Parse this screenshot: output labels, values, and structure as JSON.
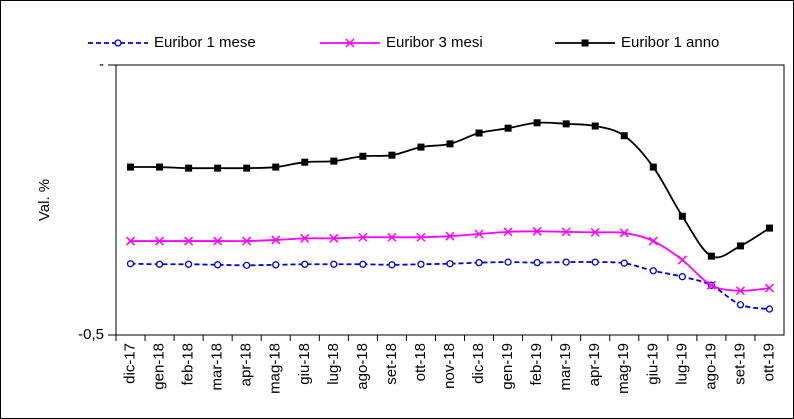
{
  "chart_data": {
    "type": "line",
    "y_label": "Val. %",
    "categories": [
      "dic-17",
      "gen-18",
      "feb-18",
      "mar-18",
      "apr-18",
      "mag-18",
      "giu-18",
      "lug-18",
      "ago-18",
      "set-18",
      "ott-18",
      "nov-18",
      "dic-18",
      "gen-19",
      "feb-19",
      "mar-19",
      "apr-19",
      "mag-19",
      "giu-19",
      "lug-19",
      "ago-19",
      "set-19",
      "ott-19"
    ],
    "series": [
      {
        "name": "Euribor 1 mese",
        "color": "#0000cc",
        "marker": "circle",
        "dash": true,
        "values": [
          -0.368,
          -0.369,
          -0.369,
          -0.37,
          -0.371,
          -0.37,
          -0.369,
          -0.369,
          -0.369,
          -0.37,
          -0.369,
          -0.368,
          -0.366,
          -0.365,
          -0.366,
          -0.365,
          -0.365,
          -0.367,
          -0.381,
          -0.392,
          -0.408,
          -0.444,
          -0.452
        ]
      },
      {
        "name": "Euribor 3 mesi",
        "color": "#ff00ff",
        "marker": "x",
        "dash": false,
        "values": [
          -0.326,
          -0.326,
          -0.326,
          -0.326,
          -0.326,
          -0.324,
          -0.321,
          -0.321,
          -0.319,
          -0.319,
          -0.319,
          -0.317,
          -0.313,
          -0.309,
          -0.308,
          -0.309,
          -0.31,
          -0.311,
          -0.326,
          -0.361,
          -0.408,
          -0.418,
          -0.413
        ]
      },
      {
        "name": "Euribor 1 anno",
        "color": "#000000",
        "marker": "square",
        "dash": false,
        "values": [
          -0.189,
          -0.189,
          -0.191,
          -0.191,
          -0.191,
          -0.189,
          -0.18,
          -0.178,
          -0.169,
          -0.167,
          -0.152,
          -0.146,
          -0.126,
          -0.117,
          -0.107,
          -0.109,
          -0.113,
          -0.131,
          -0.189,
          -0.28,
          -0.354,
          -0.335,
          -0.302
        ]
      }
    ],
    "ylim": [
      -0.5,
      0
    ],
    "yticks": [
      {
        "value": -0.5,
        "label": "-0,5"
      },
      {
        "value": 0,
        "label": "-"
      }
    ],
    "grid": false
  }
}
